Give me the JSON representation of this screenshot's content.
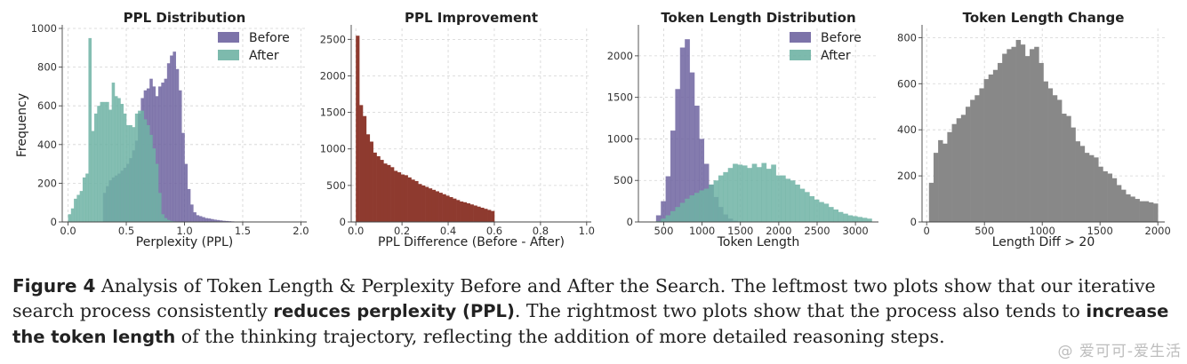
{
  "chart_data": [
    {
      "type": "bar",
      "title": "PPL Distribution",
      "xlabel": "Perplexity (PPL)",
      "ylabel": "Frequency",
      "xlim": [
        -0.05,
        2.05
      ],
      "ylim": [
        0,
        1000
      ],
      "xticks": [
        0.0,
        0.5,
        1.0,
        1.5,
        2.0
      ],
      "xtick_labels": [
        "0.0",
        "0.5",
        "1.0",
        "1.5",
        "2.0"
      ],
      "yticks": [
        0,
        200,
        400,
        600,
        800,
        1000
      ],
      "ytick_labels": [
        "0",
        "200",
        "400",
        "600",
        "800",
        "1000"
      ],
      "bin_start": 0.0,
      "bin_width": 0.025,
      "grid": true,
      "legend": "top-right",
      "series": [
        {
          "name": "Before",
          "color": "#6e64a0",
          "values": [
            0,
            0,
            0,
            0,
            0,
            0,
            0,
            0,
            0,
            0,
            0,
            0,
            150,
            185,
            215,
            230,
            240,
            250,
            265,
            280,
            300,
            330,
            370,
            420,
            560,
            640,
            680,
            690,
            740,
            700,
            650,
            700,
            720,
            740,
            820,
            860,
            880,
            790,
            680,
            460,
            300,
            170,
            90,
            50,
            35,
            30,
            25,
            20,
            18,
            15,
            12,
            10,
            8,
            6,
            5,
            4,
            3,
            2,
            2,
            1
          ]
        },
        {
          "name": "After",
          "color": "#6fb3a4",
          "values": [
            40,
            70,
            120,
            140,
            160,
            230,
            250,
            950,
            470,
            560,
            600,
            620,
            620,
            620,
            580,
            720,
            650,
            640,
            610,
            560,
            500,
            500,
            490,
            560,
            575,
            575,
            530,
            500,
            450,
            380,
            300,
            150,
            40,
            20,
            10,
            5,
            3,
            2,
            1,
            0,
            0,
            0,
            0,
            0,
            0,
            0,
            0,
            0,
            0,
            0,
            0,
            0,
            0,
            0,
            0,
            0,
            0,
            0,
            0,
            0
          ]
        }
      ]
    },
    {
      "type": "bar",
      "title": "PPL Improvement",
      "xlabel": "PPL Difference (Before - After)",
      "ylabel": "",
      "xlim": [
        -0.02,
        1.02
      ],
      "ylim": [
        0,
        2650
      ],
      "xticks": [
        0.0,
        0.2,
        0.4,
        0.6,
        0.8,
        1.0
      ],
      "xtick_labels": [
        "0.0",
        "0.2",
        "0.4",
        "0.6",
        "0.8",
        "1.0"
      ],
      "yticks": [
        0,
        500,
        1000,
        1500,
        2000,
        2500
      ],
      "ytick_labels": [
        "0",
        "500",
        "1000",
        "1500",
        "2000",
        "2500"
      ],
      "bin_start": 0.0,
      "bin_width": 0.015,
      "grid": true,
      "series": [
        {
          "name": "",
          "color": "#8e3a2f",
          "values": [
            2550,
            1600,
            1450,
            1200,
            1100,
            950,
            900,
            850,
            800,
            780,
            750,
            700,
            680,
            650,
            640,
            610,
            580,
            560,
            520,
            500,
            480,
            460,
            440,
            420,
            400,
            380,
            360,
            340,
            320,
            300,
            280,
            270,
            255,
            240,
            225,
            210,
            195,
            180,
            165,
            150
          ]
        }
      ]
    },
    {
      "type": "bar",
      "title": "Token Length Distribution",
      "xlabel": "Token Length",
      "ylabel": "",
      "xlim": [
        170,
        3300
      ],
      "ylim": [
        0,
        2330
      ],
      "xticks": [
        500,
        1000,
        1500,
        2000,
        2500,
        3000
      ],
      "xtick_labels": [
        "500",
        "1000",
        "1500",
        "2000",
        "2500",
        "3000"
      ],
      "yticks": [
        0,
        500,
        1000,
        1500,
        2000
      ],
      "ytick_labels": [
        "0",
        "500",
        "1000",
        "1500",
        "2000"
      ],
      "bin_start": 400,
      "bin_width": 62.5,
      "grid": true,
      "legend": "top-right",
      "series": [
        {
          "name": "Before",
          "color": "#6e64a0",
          "values": [
            80,
            250,
            550,
            1100,
            1600,
            2100,
            2200,
            1800,
            1400,
            1000,
            700,
            450,
            300,
            180,
            90,
            40,
            15,
            5,
            0,
            0,
            0,
            0,
            0,
            0,
            0,
            0,
            0,
            0,
            0,
            0,
            0,
            0,
            0,
            0,
            0,
            0,
            0,
            0,
            0,
            0,
            0,
            0,
            0,
            0,
            0
          ]
        },
        {
          "name": "After",
          "color": "#6fb3a4",
          "values": [
            10,
            40,
            80,
            130,
            180,
            230,
            280,
            320,
            350,
            380,
            400,
            450,
            500,
            560,
            600,
            650,
            700,
            690,
            680,
            650,
            700,
            660,
            710,
            640,
            690,
            560,
            560,
            520,
            500,
            450,
            400,
            360,
            310,
            270,
            240,
            220,
            180,
            150,
            120,
            100,
            80,
            70,
            60,
            50,
            40
          ]
        }
      ]
    },
    {
      "type": "bar",
      "title": "Token Length Change",
      "xlabel": "Length Diff > 20",
      "ylabel": "",
      "xlim": [
        -40,
        2060
      ],
      "ylim": [
        0,
        840
      ],
      "xticks": [
        0,
        500,
        1000,
        1500,
        2000
      ],
      "xtick_labels": [
        "0",
        "500",
        "1000",
        "1500",
        "2000"
      ],
      "yticks": [
        0,
        200,
        400,
        600,
        800
      ],
      "ytick_labels": [
        "0",
        "200",
        "400",
        "600",
        "800"
      ],
      "bin_start": 20,
      "bin_width": 39.6,
      "grid": true,
      "series": [
        {
          "name": "",
          "color": "#888888",
          "values": [
            170,
            300,
            355,
            340,
            390,
            425,
            450,
            465,
            500,
            530,
            550,
            580,
            620,
            640,
            660,
            690,
            730,
            750,
            760,
            790,
            770,
            720,
            750,
            760,
            690,
            610,
            580,
            550,
            530,
            470,
            460,
            410,
            350,
            330,
            300,
            290,
            280,
            240,
            220,
            210,
            190,
            160,
            140,
            120,
            110,
            100,
            90,
            90,
            85,
            80
          ]
        }
      ]
    }
  ],
  "caption": {
    "label": "Figure 4",
    "title_text": "Analysis of Token Length & Perplexity Before and After the Search. The leftmost two plots show that our iterative search process consistently",
    "highlight1": "reduces perplexity (PPL)",
    "middle_text": ". The rightmost two plots show that the process also tends to",
    "highlight2": "increase the token length",
    "end_text": "of the thinking trajectory, reflecting the addition of more detailed reasoning steps."
  },
  "watermark": "@ 爱可可-爱生活"
}
